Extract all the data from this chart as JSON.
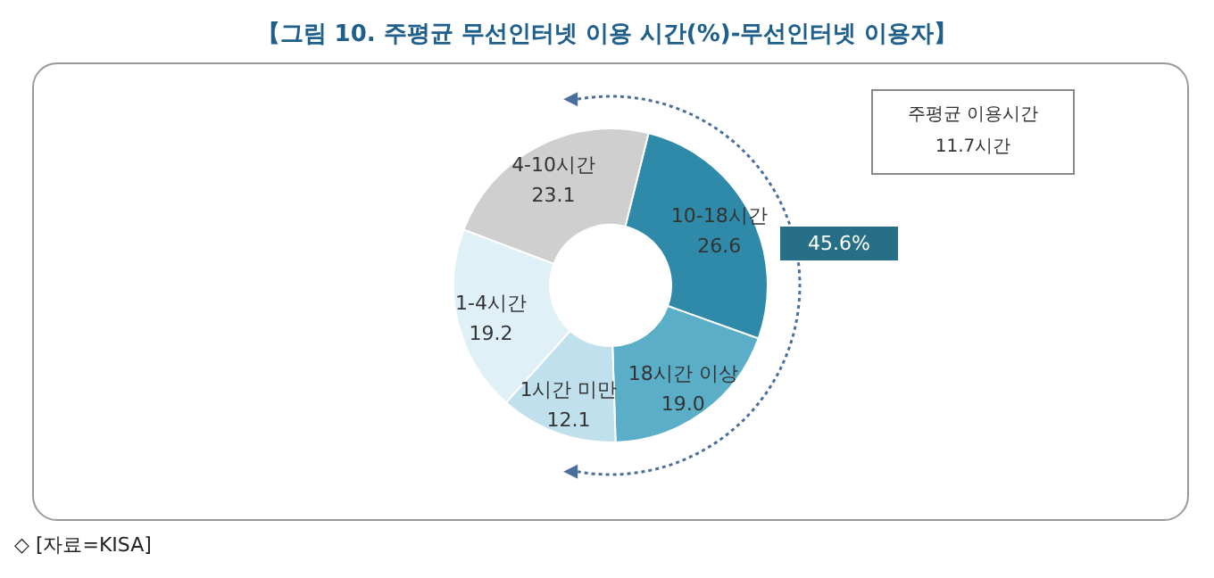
{
  "chart_data": {
    "type": "donut",
    "title": "【그림 10. 주평균 무선인터넷 이용 시간(%)-무선인터넷 이용자】",
    "categories": [
      "10-18시간",
      "18시간 이상",
      "1시간 미만",
      "1-4시간",
      "4-10시간"
    ],
    "values": [
      26.6,
      19.0,
      12.1,
      19.2,
      23.1
    ],
    "colors": [
      "#2e8aa8",
      "#5aaec8",
      "#bfe0ec",
      "#dff0f6",
      "#cfcfcf"
    ],
    "value_labels": [
      "26.6",
      "19.0",
      "12.1",
      "19.2",
      "23.1"
    ],
    "annotations": [
      "주평균 이용시간",
      "11.7시간",
      "45.6%",
      "◇ [자료=KISA]"
    ]
  }
}
